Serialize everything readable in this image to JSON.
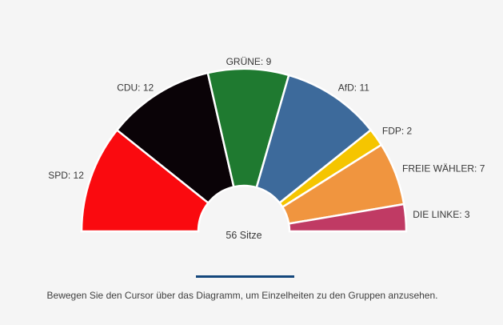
{
  "page": {
    "background_color": "#f5f5f5",
    "divider_color": "#14477c",
    "text_color": "#383838"
  },
  "chart_data": {
    "type": "pie",
    "variant": "hemicycle",
    "start_angle_deg": 180,
    "end_angle_deg": 0,
    "total_seats": 56,
    "center_label": "56 Sitze",
    "categories": [
      "SPD",
      "CDU",
      "GRÜNE",
      "AfD",
      "FDP",
      "FREIE WÄHLER",
      "DIE LINKE"
    ],
    "series": [
      {
        "name": "SPD",
        "seats": 12,
        "label": "SPD: 12",
        "color": "#fa0a0f"
      },
      {
        "name": "CDU",
        "seats": 12,
        "label": "CDU: 12",
        "color": "#0a0307"
      },
      {
        "name": "GRÜNE",
        "seats": 9,
        "label": "GRÜNE: 9",
        "color": "#1f7a30"
      },
      {
        "name": "AfD",
        "seats": 11,
        "label": "AfD: 11",
        "color": "#3d6a9b"
      },
      {
        "name": "FDP",
        "seats": 2,
        "label": "FDP: 2",
        "color": "#f5c500"
      },
      {
        "name": "FREIE WÄHLER",
        "seats": 7,
        "label": "FREIE WÄHLER: 7",
        "color": "#f0953f"
      },
      {
        "name": "DIE LINKE",
        "seats": 3,
        "label": "DIE LINKE: 3",
        "color": "#c03a64"
      }
    ],
    "legend_position": "none",
    "grid": false
  },
  "footer": {
    "hint": "Bewegen Sie den Cursor über das Diagramm, um Einzelheiten zu den Gruppen anzusehen."
  }
}
